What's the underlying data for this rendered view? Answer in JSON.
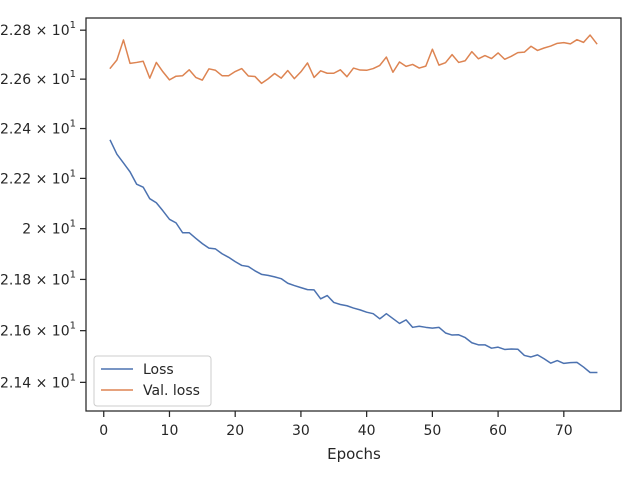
{
  "chart_data": {
    "type": "line",
    "title": "",
    "xlabel": "Epochs",
    "ylabel": "",
    "yscale": "log",
    "xlim": [
      -2.7,
      78.7
    ],
    "ylim": [
      21.29,
      22.85
    ],
    "grid": false,
    "legend_position": "lower-left",
    "x_ticks": [
      0,
      10,
      20,
      30,
      40,
      50,
      60,
      70
    ],
    "y_ticks": [
      {
        "value": 21.4,
        "mantissa": "2.14",
        "exp": "1"
      },
      {
        "value": 21.6,
        "mantissa": "2.16",
        "exp": "1"
      },
      {
        "value": 21.8,
        "mantissa": "2.18",
        "exp": "1"
      },
      {
        "value": 22.0,
        "mantissa": "2",
        "exp": "1"
      },
      {
        "value": 22.2,
        "mantissa": "2.22",
        "exp": "1"
      },
      {
        "value": 22.4,
        "mantissa": "2.24",
        "exp": "1"
      },
      {
        "value": 22.6,
        "mantissa": "2.26",
        "exp": "1"
      },
      {
        "value": 22.8,
        "mantissa": "2.28",
        "exp": "1"
      }
    ],
    "times_symbol": "×",
    "tick_base": "10",
    "x": [
      1,
      2,
      3,
      4,
      5,
      6,
      7,
      8,
      9,
      10,
      11,
      12,
      13,
      14,
      15,
      16,
      17,
      18,
      19,
      20,
      21,
      22,
      23,
      24,
      25,
      26,
      27,
      28,
      29,
      30,
      31,
      32,
      33,
      34,
      35,
      36,
      37,
      38,
      39,
      40,
      41,
      42,
      43,
      44,
      45,
      46,
      47,
      48,
      49,
      50,
      51,
      52,
      53,
      54,
      55,
      56,
      57,
      58,
      59,
      60,
      61,
      62,
      63,
      64,
      65,
      66,
      67,
      68,
      69,
      70,
      71,
      72,
      73,
      74,
      75
    ],
    "series": [
      {
        "name": "Loss",
        "color": "#4c72b0",
        "values": [
          22.352,
          22.297,
          22.262,
          22.226,
          22.177,
          22.165,
          22.119,
          22.103,
          22.071,
          22.037,
          22.023,
          21.984,
          21.984,
          21.962,
          21.941,
          21.923,
          21.92,
          21.901,
          21.887,
          21.87,
          21.855,
          21.851,
          21.834,
          21.82,
          21.816,
          21.81,
          21.803,
          21.785,
          21.776,
          21.768,
          21.76,
          21.759,
          21.724,
          21.737,
          21.71,
          21.702,
          21.697,
          21.688,
          21.681,
          21.672,
          21.666,
          21.646,
          21.666,
          21.647,
          21.628,
          21.642,
          21.613,
          21.617,
          21.613,
          21.61,
          21.613,
          21.591,
          21.583,
          21.584,
          21.573,
          21.553,
          21.545,
          21.545,
          21.532,
          21.536,
          21.527,
          21.529,
          21.528,
          21.504,
          21.498,
          21.506,
          21.491,
          21.474,
          21.484,
          21.473,
          21.476,
          21.477,
          21.459,
          21.438,
          21.438
        ]
      },
      {
        "name": "Val. loss",
        "color": "#dd8452",
        "values": [
          22.645,
          22.678,
          22.76,
          22.664,
          22.668,
          22.673,
          22.604,
          22.668,
          22.63,
          22.597,
          22.612,
          22.614,
          22.638,
          22.607,
          22.596,
          22.642,
          22.636,
          22.614,
          22.614,
          22.631,
          22.643,
          22.613,
          22.611,
          22.583,
          22.601,
          22.623,
          22.604,
          22.635,
          22.602,
          22.63,
          22.666,
          22.607,
          22.634,
          22.624,
          22.624,
          22.638,
          22.61,
          22.645,
          22.637,
          22.636,
          22.643,
          22.656,
          22.69,
          22.628,
          22.67,
          22.652,
          22.66,
          22.645,
          22.653,
          22.722,
          22.657,
          22.667,
          22.7,
          22.668,
          22.675,
          22.712,
          22.683,
          22.696,
          22.684,
          22.707,
          22.681,
          22.693,
          22.708,
          22.71,
          22.734,
          22.717,
          22.727,
          22.735,
          22.746,
          22.749,
          22.744,
          22.761,
          22.75,
          22.78,
          22.745
        ]
      }
    ]
  }
}
